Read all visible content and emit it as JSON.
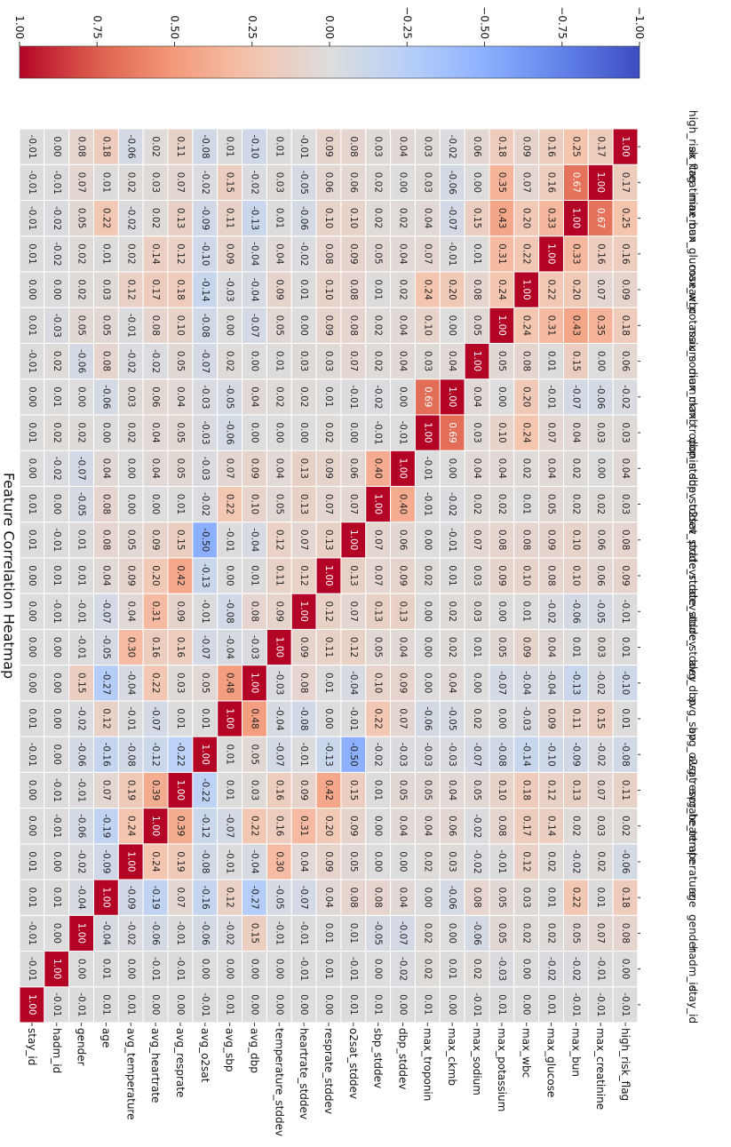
{
  "chart_data": {
    "type": "heatmap",
    "title": "Feature Correlation Heatmap",
    "rotation": "rotated 90 degrees clockwise",
    "variables": [
      "stay_id",
      "hadm_id",
      "gender",
      "age",
      "avg_temperature",
      "avg_heartrate",
      "avg_resprate",
      "avg_o2sat",
      "avg_sbp",
      "avg_dbp",
      "temperature_stddev",
      "heartrate_stddev",
      "resprate_stddev",
      "o2sat_stddev",
      "sbp_stddev",
      "dbp_stddev",
      "max_troponin",
      "max_ckmb",
      "max_sodium",
      "max_potassium",
      "max_wbc",
      "max_glucose",
      "max_bun",
      "max_creatinine",
      "high_risk_flag"
    ],
    "column_labels_visible": [
      "stay_id",
      "hadm_id",
      "gender",
      "age",
      "_temperature",
      "avg_heartrate",
      "avg_resprate",
      "avg_o2sat",
      "avg_sbp",
      "avg_dbp",
      "ature_stddev",
      "rtrate_stddev",
      "prate_stddev",
      "o2sat_stddev",
      "sbp_stddev",
      "dbp_stddev",
      "max_troponin",
      "max_ckmb",
      "max_sodium",
      "ax_potassium",
      "max_wbc",
      "max_glucose",
      "max_bun",
      "ax_creatinine",
      "high_risk_flag"
    ],
    "matrix": [
      [
        1.0,
        -0.01,
        -0.01,
        0.01,
        0.01,
        -0.0,
        -0.0,
        -0.01,
        0.01,
        -0.0,
        0.0,
        0.0,
        0.0,
        0.01,
        0.01,
        0.0,
        0.01,
        -0.0,
        -0.01,
        0.01,
        0.0,
        0.01,
        -0.01,
        -0.01,
        -0.01
      ],
      [
        -0.01,
        1.0,
        0.0,
        0.01,
        -0.0,
        -0.01,
        -0.01,
        -0.0,
        0.0,
        0.0,
        0.0,
        -0.01,
        0.01,
        -0.01,
        0.0,
        -0.02,
        0.02,
        0.01,
        0.02,
        -0.03,
        -0.0,
        -0.02,
        -0.02,
        -0.01,
        0.0
      ],
      [
        -0.01,
        0.0,
        1.0,
        -0.04,
        -0.02,
        -0.06,
        -0.01,
        -0.06,
        -0.02,
        0.15,
        -0.01,
        -0.01,
        0.01,
        0.01,
        -0.05,
        -0.07,
        0.02,
        0.0,
        -0.06,
        0.05,
        0.02,
        0.02,
        0.05,
        0.07,
        0.08
      ],
      [
        0.01,
        0.01,
        -0.04,
        1.0,
        -0.09,
        -0.19,
        0.07,
        -0.16,
        0.12,
        -0.27,
        -0.05,
        -0.07,
        0.04,
        0.08,
        0.08,
        0.04,
        0.0,
        -0.06,
        0.08,
        0.05,
        0.03,
        0.01,
        0.22,
        0.01,
        0.18
      ],
      [
        0.01,
        -0.0,
        -0.02,
        -0.09,
        1.0,
        0.24,
        0.19,
        -0.08,
        -0.01,
        -0.04,
        0.3,
        0.04,
        0.09,
        0.05,
        -0.0,
        -0.0,
        0.02,
        0.03,
        -0.02,
        -0.01,
        0.12,
        0.02,
        -0.02,
        0.02,
        -0.06
      ],
      [
        -0.0,
        -0.01,
        -0.06,
        -0.19,
        0.24,
        1.0,
        0.39,
        -0.12,
        -0.07,
        0.22,
        0.16,
        0.31,
        0.2,
        0.09,
        0.0,
        0.04,
        0.04,
        0.06,
        -0.02,
        0.08,
        0.17,
        0.14,
        0.02,
        0.03,
        0.02
      ],
      [
        -0.0,
        -0.01,
        -0.01,
        0.07,
        0.19,
        0.39,
        1.0,
        -0.22,
        0.01,
        0.03,
        0.16,
        0.09,
        0.42,
        0.15,
        0.01,
        0.05,
        0.05,
        0.04,
        0.05,
        0.1,
        0.18,
        0.12,
        0.13,
        0.07,
        0.11
      ],
      [
        -0.01,
        -0.0,
        -0.06,
        -0.16,
        -0.08,
        -0.12,
        -0.22,
        1.0,
        0.01,
        0.05,
        -0.07,
        -0.01,
        -0.13,
        -0.5,
        -0.02,
        -0.03,
        -0.03,
        -0.03,
        -0.07,
        -0.08,
        -0.14,
        -0.1,
        -0.09,
        -0.02,
        -0.08
      ],
      [
        0.01,
        0.0,
        -0.02,
        0.12,
        -0.01,
        -0.07,
        0.01,
        0.01,
        1.0,
        0.48,
        -0.04,
        -0.08,
        -0.0,
        -0.01,
        0.22,
        0.07,
        -0.06,
        -0.05,
        0.02,
        0.0,
        -0.03,
        0.09,
        0.11,
        0.15,
        0.01
      ],
      [
        -0.0,
        0.0,
        0.15,
        -0.27,
        -0.04,
        0.22,
        0.03,
        0.05,
        0.48,
        1.0,
        -0.03,
        0.08,
        0.01,
        -0.04,
        0.1,
        0.09,
        -0.0,
        0.04,
        -0.0,
        -0.07,
        -0.04,
        -0.04,
        -0.13,
        -0.02,
        -0.1
      ],
      [
        0.0,
        0.0,
        -0.01,
        -0.05,
        0.3,
        0.16,
        0.16,
        -0.07,
        -0.04,
        -0.03,
        1.0,
        0.09,
        0.11,
        0.12,
        0.05,
        0.04,
        0.0,
        0.02,
        0.01,
        0.05,
        0.09,
        0.04,
        0.01,
        0.03,
        0.01
      ],
      [
        0.0,
        -0.01,
        -0.01,
        -0.07,
        0.04,
        0.31,
        0.09,
        -0.01,
        -0.08,
        0.08,
        0.09,
        1.0,
        0.12,
        0.07,
        0.13,
        0.13,
        -0.0,
        0.02,
        0.03,
        0.0,
        0.01,
        -0.02,
        -0.06,
        -0.05,
        -0.01
      ],
      [
        0.0,
        0.01,
        0.01,
        0.04,
        0.09,
        0.2,
        0.42,
        -0.13,
        -0.0,
        0.01,
        0.11,
        0.12,
        1.0,
        0.13,
        0.07,
        0.09,
        0.02,
        0.01,
        0.03,
        0.09,
        0.1,
        0.08,
        0.1,
        0.06,
        0.09
      ],
      [
        0.01,
        -0.01,
        0.01,
        0.08,
        0.05,
        0.09,
        0.15,
        -0.5,
        -0.01,
        -0.04,
        0.12,
        0.07,
        0.13,
        1.0,
        0.07,
        0.06,
        0.0,
        -0.01,
        0.07,
        0.08,
        0.08,
        0.09,
        0.1,
        0.06,
        0.08
      ],
      [
        0.01,
        0.0,
        -0.05,
        0.08,
        -0.0,
        0.0,
        0.01,
        -0.02,
        0.22,
        0.1,
        0.05,
        0.13,
        0.07,
        0.07,
        1.0,
        0.4,
        -0.01,
        -0.02,
        0.02,
        0.02,
        0.01,
        0.05,
        0.02,
        0.02,
        0.03
      ],
      [
        0.0,
        -0.02,
        -0.07,
        0.04,
        -0.0,
        0.04,
        0.05,
        -0.03,
        0.07,
        0.09,
        0.04,
        0.13,
        0.09,
        0.06,
        0.4,
        1.0,
        -0.01,
        -0.0,
        0.04,
        0.04,
        0.02,
        0.04,
        0.02,
        0.0,
        0.04
      ],
      [
        0.01,
        0.02,
        0.02,
        0.0,
        0.02,
        0.04,
        0.05,
        -0.03,
        -0.06,
        -0.0,
        0.0,
        -0.0,
        0.02,
        0.0,
        -0.01,
        -0.01,
        1.0,
        0.69,
        0.03,
        0.1,
        0.24,
        0.07,
        0.04,
        0.03,
        0.03
      ],
      [
        -0.0,
        0.01,
        0.0,
        -0.06,
        0.03,
        0.06,
        0.04,
        -0.03,
        -0.05,
        0.04,
        0.02,
        0.02,
        0.01,
        -0.01,
        -0.02,
        -0.0,
        0.69,
        1.0,
        0.04,
        0.0,
        0.2,
        -0.01,
        -0.07,
        -0.06,
        -0.02
      ],
      [
        -0.01,
        0.02,
        -0.06,
        0.08,
        -0.02,
        -0.02,
        0.05,
        -0.07,
        0.02,
        -0.0,
        0.01,
        0.03,
        0.03,
        0.07,
        0.02,
        0.04,
        0.03,
        0.04,
        1.0,
        0.05,
        0.08,
        0.01,
        0.15,
        0.0,
        0.06
      ],
      [
        0.01,
        -0.03,
        0.05,
        0.05,
        -0.01,
        0.08,
        0.1,
        -0.08,
        0.0,
        -0.07,
        0.05,
        0.0,
        0.09,
        0.08,
        0.02,
        0.04,
        0.1,
        0.0,
        0.05,
        1.0,
        0.24,
        0.31,
        0.43,
        0.35,
        0.18
      ],
      [
        0.0,
        -0.0,
        0.02,
        0.03,
        0.12,
        0.17,
        0.18,
        -0.14,
        -0.03,
        -0.04,
        0.09,
        0.01,
        0.1,
        0.08,
        0.01,
        0.02,
        0.24,
        0.2,
        0.08,
        0.24,
        1.0,
        0.22,
        0.2,
        0.07,
        0.09
      ],
      [
        0.01,
        -0.02,
        0.02,
        0.01,
        0.02,
        0.14,
        0.12,
        -0.1,
        0.09,
        -0.04,
        0.04,
        -0.02,
        0.08,
        0.09,
        0.05,
        0.04,
        0.07,
        -0.01,
        0.01,
        0.31,
        0.22,
        1.0,
        0.33,
        0.16,
        0.16
      ],
      [
        -0.01,
        -0.02,
        0.05,
        0.22,
        -0.02,
        0.02,
        0.13,
        -0.09,
        0.11,
        -0.13,
        0.01,
        -0.06,
        0.1,
        0.1,
        0.02,
        0.02,
        0.04,
        -0.07,
        0.15,
        0.43,
        0.2,
        0.33,
        1.0,
        0.67,
        0.25
      ],
      [
        -0.01,
        -0.01,
        0.07,
        0.01,
        0.02,
        0.03,
        0.07,
        -0.02,
        0.15,
        -0.02,
        0.03,
        -0.05,
        0.06,
        0.06,
        0.02,
        0.0,
        0.03,
        -0.06,
        0.0,
        0.35,
        0.07,
        0.16,
        0.67,
        1.0,
        0.17
      ],
      [
        -0.01,
        0.0,
        0.08,
        0.18,
        -0.06,
        0.02,
        0.11,
        -0.08,
        0.01,
        -0.1,
        0.01,
        -0.01,
        0.09,
        0.08,
        0.03,
        0.04,
        0.03,
        -0.02,
        0.06,
        0.18,
        0.09,
        0.16,
        0.25,
        0.17,
        1.0
      ]
    ],
    "colorscale": "coolwarm",
    "vmin": -1.0,
    "vmax": 1.0,
    "colorbar": {
      "ticks": [
        1.0,
        0.75,
        0.5,
        0.25,
        0.0,
        -0.25,
        -0.5,
        -0.75,
        -1.0
      ],
      "tick_labels": [
        "1.00",
        "0.75",
        "0.50",
        "0.25",
        "0.00",
        "−0.25",
        "−0.50",
        "−0.75",
        "−1.00"
      ],
      "placement": "top"
    }
  }
}
